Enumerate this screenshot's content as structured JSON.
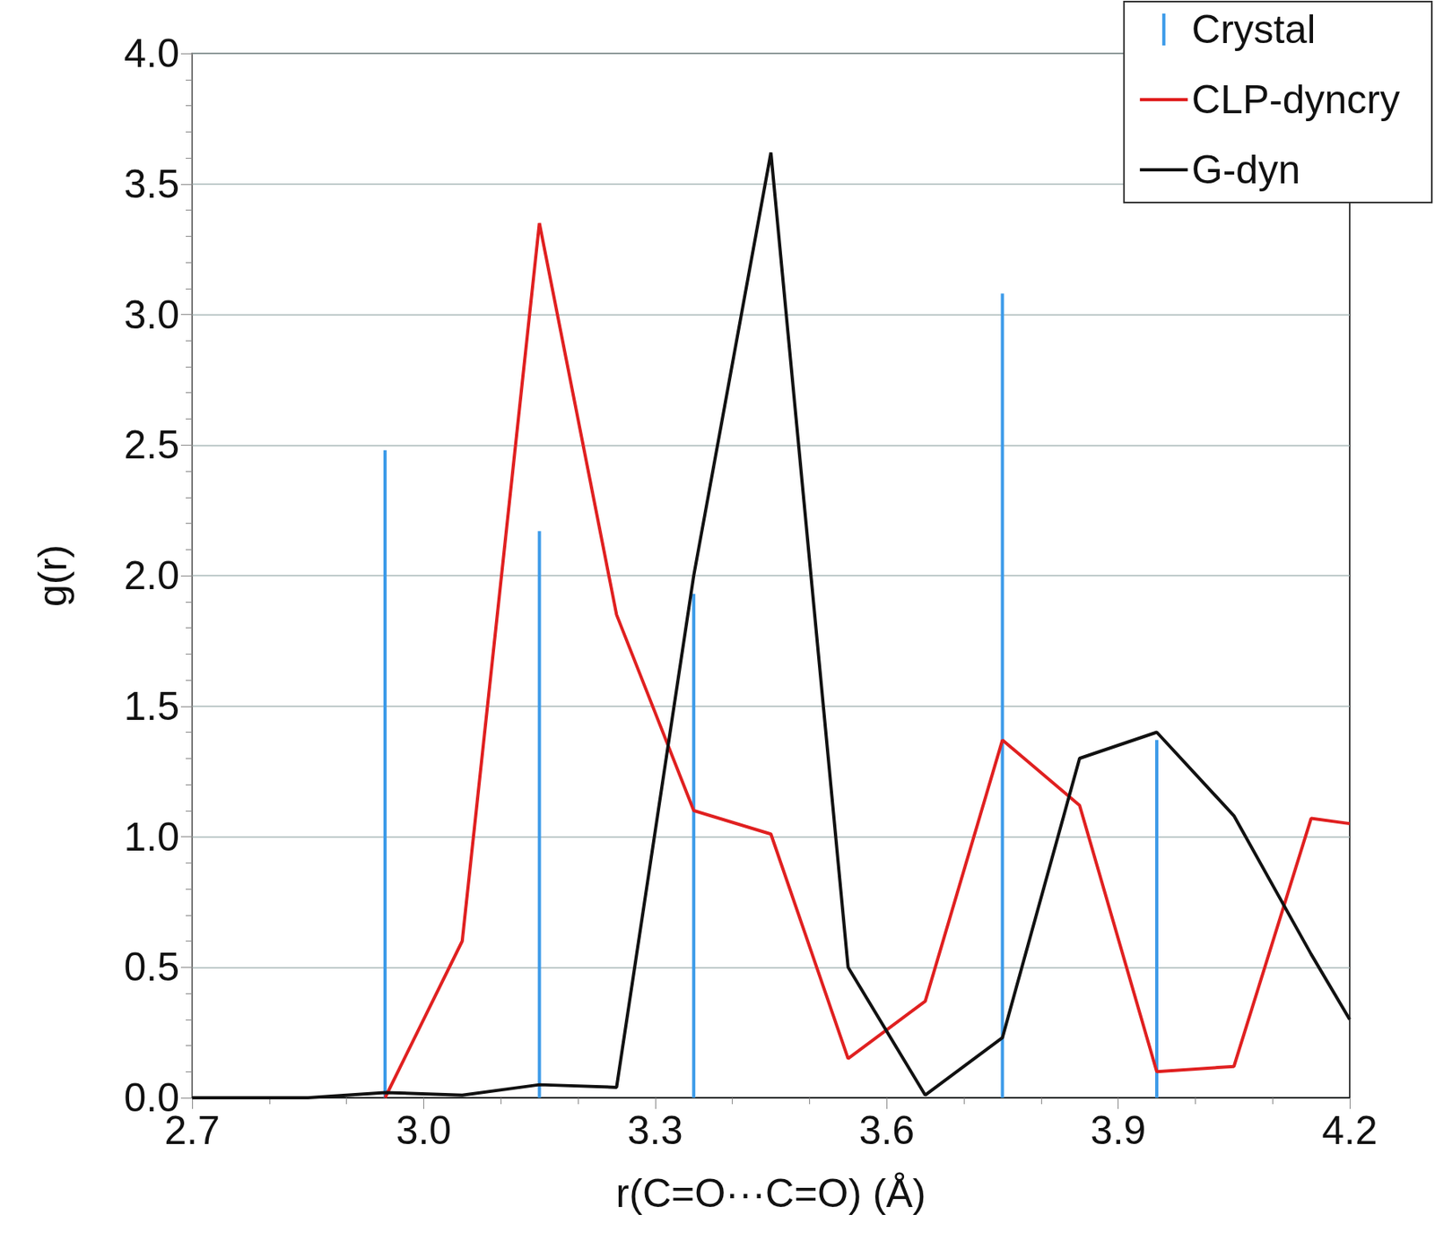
{
  "chart_data": {
    "type": "line",
    "xlabel": "r(C=O···C=O) (Å)",
    "ylabel": "g(r)",
    "xlim": [
      2.7,
      4.2
    ],
    "xticks": [
      2.7,
      {
        "value": 3,
        "label": "3.0"
      },
      3.3,
      3.6,
      3.9,
      4.2
    ],
    "ylim": [
      0,
      4
    ],
    "yticks": [
      {
        "value": 0,
        "label": "0.0"
      },
      0.5,
      {
        "value": 1,
        "label": "1.0"
      },
      1.5,
      {
        "value": 2,
        "label": "2.0"
      },
      2.5,
      {
        "value": 3,
        "label": "3.0"
      },
      3.5,
      {
        "value": 4,
        "label": "4.0"
      }
    ],
    "grid": true,
    "legend": "upper right",
    "series": [
      {
        "name": "Crystal",
        "type": "bar",
        "color": "#3d9be9",
        "x": [
          2.95,
          3.15,
          3.35,
          3.75,
          3.95
        ],
        "values": [
          2.48,
          2.17,
          1.93,
          3.08,
          1.37
        ]
      },
      {
        "name": "CLP-dyncry",
        "type": "line",
        "color": "#e02020",
        "x": [
          2.95,
          3.05,
          3.15,
          3.25,
          3.35,
          3.45,
          3.55,
          3.65,
          3.75,
          3.85,
          3.95,
          4.05,
          4.15,
          4.2
        ],
        "values": [
          0,
          0.6,
          3.35,
          1.85,
          1.1,
          1.01,
          0.15,
          0.37,
          1.37,
          1.12,
          0.1,
          0.12,
          1.07,
          1.05
        ]
      },
      {
        "name": "G-dyn",
        "type": "line",
        "color": "#111111",
        "x": [
          2.7,
          2.85,
          2.95,
          3.05,
          3.15,
          3.25,
          3.35,
          3.45,
          3.55,
          3.65,
          3.75,
          3.85,
          3.95,
          4.05,
          4.15,
          4.2
        ],
        "values": [
          0,
          0,
          0.02,
          0.01,
          0.05,
          0.04,
          2.0,
          3.62,
          0.5,
          0.01,
          0.23,
          1.3,
          1.4,
          1.08,
          0.55,
          0.3
        ]
      }
    ]
  }
}
